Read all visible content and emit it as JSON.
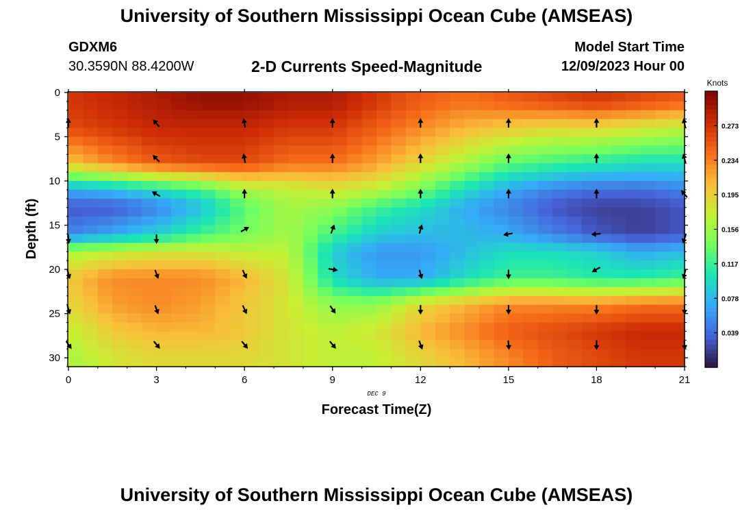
{
  "header": {
    "title": "University of Southern Mississippi Ocean Cube (AMSEAS)",
    "station_name": "GDXM6",
    "station_coords": "30.3590N  88.4200W",
    "plot_title": "2-D Currents Speed-Magnitude",
    "start_label": "Model Start Time",
    "start_value": "12/09/2023 Hour 00"
  },
  "footer": {
    "title": "University of Southern Mississippi Ocean Cube (AMSEAS)"
  },
  "chart_data": {
    "type": "heatmap",
    "title": "2-D Currents Speed-Magnitude",
    "xlabel": "Forecast Time(Z)",
    "ylabel": "Depth (ft)",
    "date_label": "DEC 9",
    "xlim": [
      0,
      21
    ],
    "ylim": [
      0,
      31
    ],
    "x_ticks": [
      0,
      3,
      6,
      9,
      12,
      15,
      18,
      21
    ],
    "y_ticks": [
      0,
      5,
      10,
      15,
      20,
      25,
      30
    ],
    "colorbar": {
      "label": "Knots",
      "min": 0.0,
      "max": 0.312,
      "ticks": [
        "0.039",
        "0.078",
        "0.117",
        "0.156",
        "0.195",
        "0.234",
        "0.273"
      ],
      "colors": [
        "#30123b",
        "#4662d7",
        "#36aaf9",
        "#1ae4b6",
        "#72fe5e",
        "#c7ef34",
        "#fabb39",
        "#f66b19",
        "#cb2a04",
        "#7a0403"
      ]
    },
    "value_grid_notes": "speed in knots; columns = forecast hour, rows = depth (ft)",
    "hours": [
      0,
      1.5,
      3,
      4.5,
      6,
      7.5,
      9,
      10.5,
      12,
      13.5,
      15,
      16.5,
      18,
      19.5,
      21
    ],
    "depths": [
      1,
      4,
      8,
      11,
      13,
      16,
      18,
      21,
      24,
      27,
      30
    ],
    "speed_knots": [
      [
        0.27,
        0.28,
        0.29,
        0.3,
        0.3,
        0.29,
        0.29,
        0.27,
        0.25,
        0.24,
        0.25,
        0.26,
        0.27,
        0.26,
        0.25
      ],
      [
        0.26,
        0.27,
        0.28,
        0.28,
        0.28,
        0.27,
        0.27,
        0.25,
        0.23,
        0.21,
        0.2,
        0.19,
        0.19,
        0.18,
        0.17
      ],
      [
        0.2,
        0.23,
        0.25,
        0.26,
        0.26,
        0.24,
        0.24,
        0.22,
        0.19,
        0.16,
        0.13,
        0.12,
        0.11,
        0.1,
        0.1
      ],
      [
        0.07,
        0.08,
        0.1,
        0.12,
        0.16,
        0.17,
        0.18,
        0.17,
        0.14,
        0.1,
        0.07,
        0.05,
        0.04,
        0.04,
        0.05
      ],
      [
        0.03,
        0.03,
        0.05,
        0.08,
        0.13,
        0.16,
        0.15,
        0.12,
        0.1,
        0.07,
        0.05,
        0.03,
        0.02,
        0.02,
        0.03
      ],
      [
        0.05,
        0.07,
        0.09,
        0.12,
        0.14,
        0.16,
        0.12,
        0.09,
        0.08,
        0.08,
        0.07,
        0.05,
        0.03,
        0.02,
        0.03
      ],
      [
        0.16,
        0.17,
        0.18,
        0.18,
        0.17,
        0.17,
        0.09,
        0.06,
        0.06,
        0.08,
        0.1,
        0.1,
        0.09,
        0.07,
        0.08
      ],
      [
        0.2,
        0.23,
        0.23,
        0.23,
        0.21,
        0.18,
        0.1,
        0.07,
        0.07,
        0.1,
        0.12,
        0.12,
        0.11,
        0.11,
        0.12
      ],
      [
        0.19,
        0.22,
        0.23,
        0.22,
        0.2,
        0.18,
        0.15,
        0.15,
        0.19,
        0.21,
        0.23,
        0.23,
        0.23,
        0.24,
        0.24
      ],
      [
        0.17,
        0.2,
        0.21,
        0.21,
        0.2,
        0.18,
        0.17,
        0.18,
        0.21,
        0.23,
        0.25,
        0.26,
        0.27,
        0.28,
        0.28
      ],
      [
        0.16,
        0.18,
        0.19,
        0.19,
        0.19,
        0.18,
        0.17,
        0.17,
        0.19,
        0.21,
        0.23,
        0.25,
        0.26,
        0.27,
        0.27
      ]
    ],
    "vectors": [
      {
        "hour": 0,
        "depth": 3.5,
        "dir": 0
      },
      {
        "hour": 3,
        "depth": 3.5,
        "dir": -40
      },
      {
        "hour": 6,
        "depth": 3.5,
        "dir": -10
      },
      {
        "hour": 9,
        "depth": 3.5,
        "dir": 0
      },
      {
        "hour": 12,
        "depth": 3.5,
        "dir": 0
      },
      {
        "hour": 15,
        "depth": 3.5,
        "dir": 0
      },
      {
        "hour": 18,
        "depth": 3.5,
        "dir": 0
      },
      {
        "hour": 21,
        "depth": 3.5,
        "dir": -10
      },
      {
        "hour": 3,
        "depth": 7.5,
        "dir": -45
      },
      {
        "hour": 6,
        "depth": 7.5,
        "dir": -10
      },
      {
        "hour": 9,
        "depth": 7.5,
        "dir": 0
      },
      {
        "hour": 12,
        "depth": 7.5,
        "dir": 0
      },
      {
        "hour": 15,
        "depth": 7.5,
        "dir": 0
      },
      {
        "hour": 18,
        "depth": 7.5,
        "dir": 0
      },
      {
        "hour": 21,
        "depth": 7.5,
        "dir": -15
      },
      {
        "hour": 3,
        "depth": 11.5,
        "dir": -60
      },
      {
        "hour": 6,
        "depth": 11.5,
        "dir": 0
      },
      {
        "hour": 9,
        "depth": 11.5,
        "dir": 0
      },
      {
        "hour": 12,
        "depth": 11.5,
        "dir": 0
      },
      {
        "hour": 15,
        "depth": 11.5,
        "dir": 0
      },
      {
        "hour": 18,
        "depth": 11.5,
        "dir": 0
      },
      {
        "hour": 21,
        "depth": 11.5,
        "dir": -40
      },
      {
        "hour": 0,
        "depth": 16.5,
        "dir": 175
      },
      {
        "hour": 3,
        "depth": 16.5,
        "dir": 180
      },
      {
        "hour": 6,
        "depth": 15.5,
        "dir": 60
      },
      {
        "hour": 9,
        "depth": 15.5,
        "dir": 20
      },
      {
        "hour": 12,
        "depth": 15.5,
        "dir": 15
      },
      {
        "hour": 15,
        "depth": 16.0,
        "dir": -100
      },
      {
        "hour": 18,
        "depth": 16.0,
        "dir": -95
      },
      {
        "hour": 21,
        "depth": 16.5,
        "dir": -160
      },
      {
        "hour": 0,
        "depth": 20.5,
        "dir": 165
      },
      {
        "hour": 3,
        "depth": 20.5,
        "dir": 160
      },
      {
        "hour": 6,
        "depth": 20.5,
        "dir": 155
      },
      {
        "hour": 9,
        "depth": 20.0,
        "dir": 100
      },
      {
        "hour": 12,
        "depth": 20.5,
        "dir": 165
      },
      {
        "hour": 15,
        "depth": 20.5,
        "dir": 180
      },
      {
        "hour": 18,
        "depth": 20.0,
        "dir": -120
      },
      {
        "hour": 21,
        "depth": 20.5,
        "dir": -165
      },
      {
        "hour": 0,
        "depth": 24.5,
        "dir": 165
      },
      {
        "hour": 3,
        "depth": 24.5,
        "dir": 160
      },
      {
        "hour": 6,
        "depth": 24.5,
        "dir": 155
      },
      {
        "hour": 9,
        "depth": 24.5,
        "dir": 145
      },
      {
        "hour": 12,
        "depth": 24.5,
        "dir": 180
      },
      {
        "hour": 15,
        "depth": 24.5,
        "dir": 180
      },
      {
        "hour": 18,
        "depth": 24.5,
        "dir": 180
      },
      {
        "hour": 21,
        "depth": 24.5,
        "dir": 180
      },
      {
        "hour": 0,
        "depth": 28.5,
        "dir": 145
      },
      {
        "hour": 3,
        "depth": 28.5,
        "dir": 140
      },
      {
        "hour": 6,
        "depth": 28.5,
        "dir": 140
      },
      {
        "hour": 9,
        "depth": 28.5,
        "dir": 140
      },
      {
        "hour": 12,
        "depth": 28.5,
        "dir": 160
      },
      {
        "hour": 15,
        "depth": 28.5,
        "dir": 175
      },
      {
        "hour": 18,
        "depth": 28.5,
        "dir": 180
      },
      {
        "hour": 21,
        "depth": 28.5,
        "dir": 175
      }
    ]
  }
}
